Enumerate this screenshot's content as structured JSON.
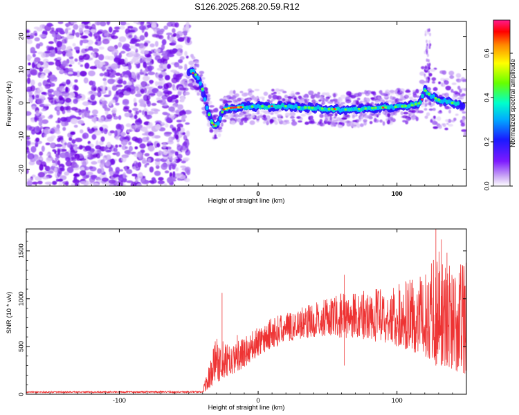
{
  "title": "S126.2025.268.20.59.R12",
  "chart_data": [
    {
      "type": "heatmap",
      "xlabel": "Height of straight line (km)",
      "ylabel": "Frequency (Hz)",
      "xlim": [
        -167,
        150
      ],
      "ylim": [
        -25,
        24.5
      ],
      "x_ticks": [
        -100,
        0,
        100
      ],
      "y_ticks": [
        -20,
        -10,
        0,
        10,
        20
      ],
      "colorbar": {
        "label": "Normalized spectral amplitude",
        "range": [
          0.0,
          0.75
        ],
        "ticks": [
          0.0,
          0.2,
          0.4,
          0.6
        ]
      },
      "ridge": {
        "x": [
          -50,
          -47,
          -44,
          -40,
          -36,
          -33,
          -31,
          -29,
          -27,
          -25,
          -20,
          -10,
          0,
          10,
          20,
          30,
          40,
          50,
          60,
          70,
          80,
          90,
          100,
          110,
          117,
          120,
          122,
          125,
          130,
          140,
          148
        ],
        "y": [
          9.5,
          9.5,
          8,
          4,
          -3,
          -6,
          -7,
          -6.5,
          -4,
          -2,
          -1.5,
          -1.2,
          -1,
          -1.1,
          -1,
          -1.3,
          -1.5,
          -1.8,
          -2,
          -1.9,
          -1.6,
          -1.4,
          -1.2,
          -0.8,
          0,
          4,
          3,
          2,
          1,
          0,
          -1
        ]
      }
    },
    {
      "type": "line",
      "xlabel": "Height of straight line (km)",
      "ylabel": "SNR (10 * v/v)",
      "xlim": [
        -167,
        150
      ],
      "ylim": [
        0,
        1730
      ],
      "x_ticks": [
        -100,
        0,
        100
      ],
      "y_ticks": [
        0,
        500,
        1000,
        1500
      ],
      "series": [
        {
          "color": "#ee3333",
          "envelope": {
            "x": [
              -167,
              -40,
              -37,
              -30,
              -20,
              -10,
              0,
              10,
              20,
              30,
              40,
              50,
              60,
              70,
              80,
              90,
              100,
              110,
              120,
              130,
              140,
              150
            ],
            "low": [
              15,
              15,
              40,
              120,
              200,
              280,
              400,
              480,
              550,
              580,
              600,
              610,
              590,
              580,
              560,
              540,
              500,
              450,
              400,
              300,
              250,
              200
            ],
            "high": [
              30,
              35,
              250,
              600,
              500,
              600,
              700,
              800,
              850,
              900,
              950,
              1000,
              1050,
              1050,
              1100,
              1100,
              1150,
              1200,
              1250,
              1500,
              1300,
              1400
            ]
          }
        }
      ]
    }
  ]
}
